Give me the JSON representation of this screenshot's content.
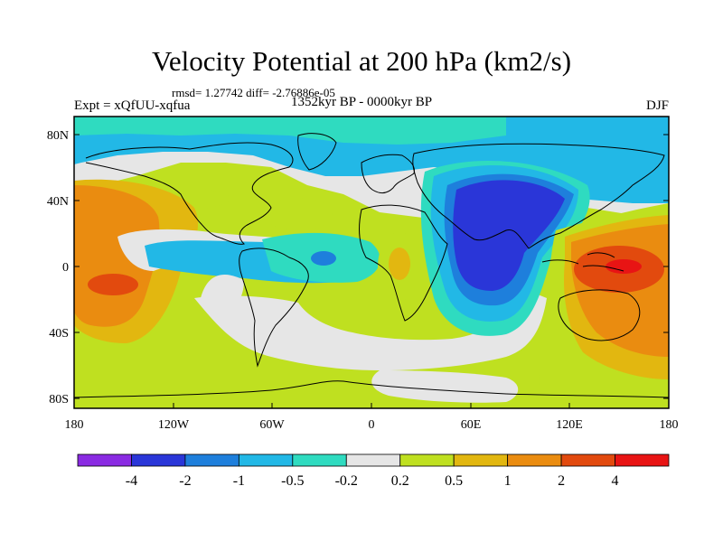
{
  "title": "Velocity Potential at 200 hPa (km2/s)",
  "stats": "rmsd= 1.27742 diff= -2.76886e-05",
  "experiment": "Expt = xQfUU-xqfua",
  "period": "1352kyr BP - 0000kyr BP",
  "season": "DJF",
  "axes": {
    "y_labels": [
      "80N",
      "40N",
      "0",
      "40S",
      "80S"
    ],
    "x_labels": [
      "180",
      "120W",
      "60W",
      "0",
      "60E",
      "120E",
      "180"
    ]
  },
  "colorbar": {
    "colors": [
      "#8a2be2",
      "#2a36d8",
      "#1e7fdc",
      "#22b8e6",
      "#2fdbc0",
      "#e6e6e6",
      "#bfe020",
      "#e2b710",
      "#ea8c10",
      "#e24a0e",
      "#e81414"
    ],
    "labels": [
      "-4",
      "-2",
      "-1",
      "-0.5",
      "-0.2",
      "0.2",
      "0.5",
      "1",
      "2",
      "4"
    ]
  },
  "colors": {
    "neutral": "#e6e6e6",
    "coastline": "#000000"
  }
}
